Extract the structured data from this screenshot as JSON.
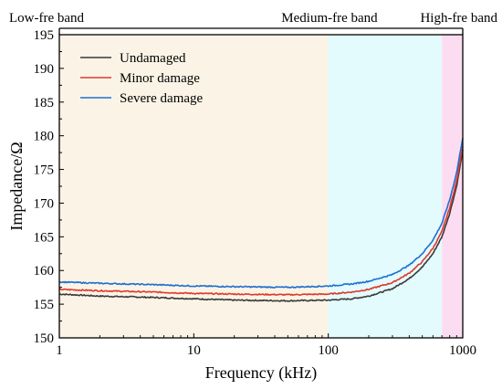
{
  "chart_data": {
    "type": "line",
    "xlabel": "Frequency (kHz)",
    "ylabel": "Impedance/Ω",
    "x_scale": "log",
    "xlim": [
      1,
      1000
    ],
    "ylim": [
      150,
      195
    ],
    "x_ticks": [
      1,
      10,
      100,
      1000
    ],
    "x_tick_labels": [
      "1",
      "10",
      "100",
      "1000"
    ],
    "y_ticks": [
      150,
      155,
      160,
      165,
      170,
      175,
      180,
      185,
      190,
      195
    ],
    "y_tick_labels": [
      "150",
      "155",
      "160",
      "165",
      "170",
      "175",
      "180",
      "185",
      "190",
      "195"
    ],
    "grid": false,
    "legend_position": "top-left",
    "bands": [
      {
        "label": "Low-fre band",
        "from": 1,
        "to": 100,
        "color": "#fbf4e6"
      },
      {
        "label": "Medium-fre band",
        "from": 100,
        "to": 700,
        "color": "#e3fbfd"
      },
      {
        "label": "High-fre band",
        "from": 700,
        "to": 1000,
        "color": "#fbdcf1"
      }
    ],
    "x": [
      1,
      2,
      5,
      10,
      20,
      50,
      100,
      150,
      200,
      300,
      400,
      500,
      600,
      700,
      800,
      900,
      1000
    ],
    "series": [
      {
        "name": "Undamaged",
        "color": "#3a3a3a",
        "values": [
          156.5,
          156.2,
          156.0,
          155.8,
          155.6,
          155.5,
          155.6,
          155.8,
          156.2,
          157.3,
          158.8,
          160.5,
          162.5,
          165.0,
          168.5,
          172.5,
          177.8
        ]
      },
      {
        "name": "Minor damage",
        "color": "#e0382c",
        "values": [
          157.2,
          157.0,
          156.8,
          156.6,
          156.5,
          156.4,
          156.5,
          156.8,
          157.2,
          158.2,
          159.6,
          161.3,
          163.3,
          165.8,
          169.3,
          173.3,
          178.5
        ]
      },
      {
        "name": "Severe damage",
        "color": "#1f6fd1",
        "values": [
          158.3,
          158.1,
          157.9,
          157.7,
          157.6,
          157.5,
          157.7,
          158.0,
          158.4,
          159.4,
          160.8,
          162.5,
          164.5,
          167.0,
          170.5,
          174.5,
          179.7
        ]
      }
    ]
  }
}
